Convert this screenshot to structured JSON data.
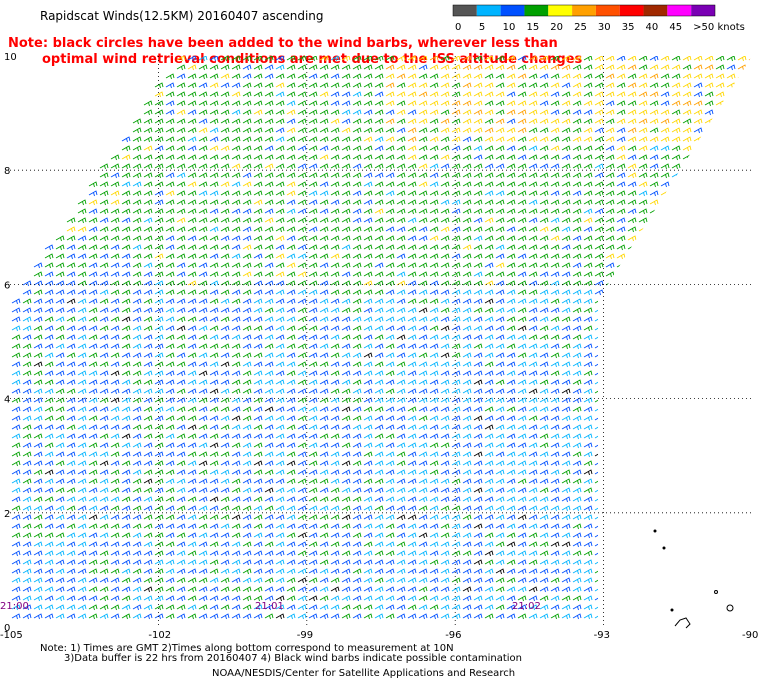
{
  "title": "Rapidscat Winds(12.5KM) 20160407 ascending",
  "note_line1": "Note: black circles have been added to the wind barbs, wherever less than",
  "note_line2": "optimal wind retrieval conditions are met due to the ISS altitude changes",
  "legend": {
    "unit": ">50 knots",
    "labels": [
      "0",
      "5",
      "10",
      "15",
      "20",
      "25",
      "30",
      "35",
      "40",
      "45"
    ],
    "colors": [
      "#555555",
      "#00b4ff",
      "#0050ff",
      "#00a000",
      "#ffff00",
      "#ffa000",
      "#ff5000",
      "#ff0000",
      "#a02800",
      "#ff00ff",
      "#7a00b4"
    ]
  },
  "map": {
    "lon_min": -105,
    "lon_max": -90,
    "lat_min": 0,
    "lat_max": 10,
    "lon_ticks": [
      "-105",
      "-102",
      "-99",
      "-96",
      "-93",
      "-90"
    ],
    "lat_ticks": [
      "0",
      "2",
      "4",
      "6",
      "8",
      "10"
    ],
    "time_labels": [
      "21:00",
      "21:01",
      "21:02"
    ],
    "time_color": "#800080"
  },
  "footer": {
    "note_line1": "Note: 1) Times are GMT 2)Times along bottom correspond to measurement at 10N",
    "note_line2": "3)Data buffer is 22 hrs from 20160407 4) Black wind barbs indicate possible contamination",
    "credit": "NOAA/NESDIS/Center for Satellite Applications and Research"
  }
}
